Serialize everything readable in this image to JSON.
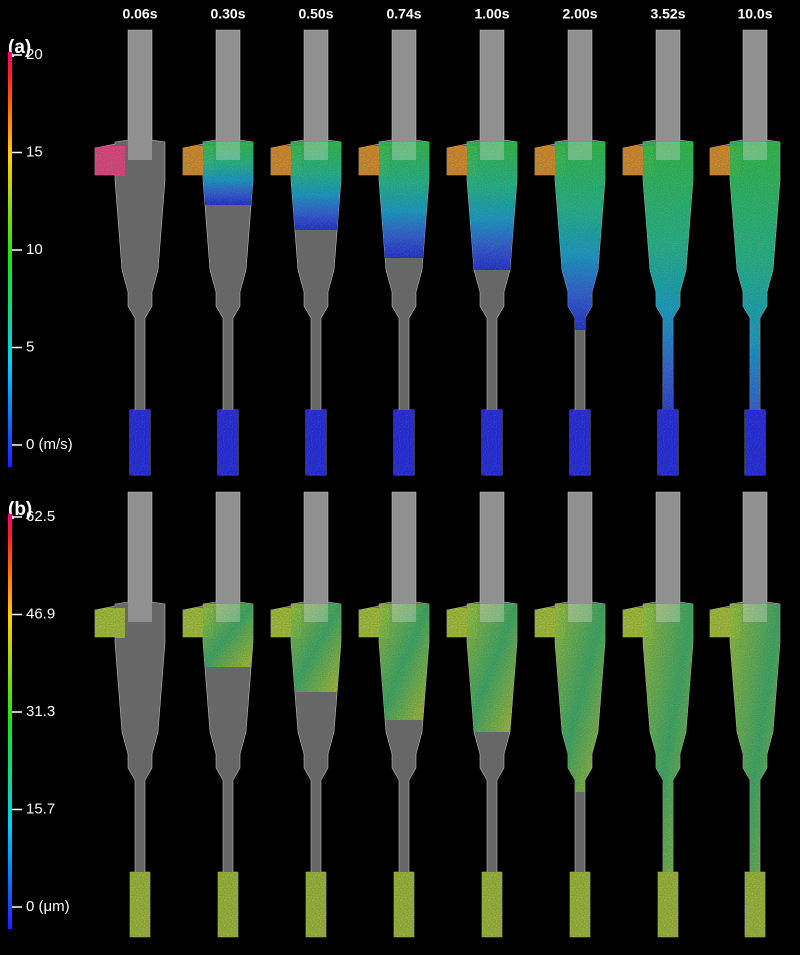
{
  "columns": [
    "0.06s",
    "0.30s",
    "0.50s",
    "0.74s",
    "1.00s",
    "2.00s",
    "3.52s",
    "10.0s"
  ],
  "panels": [
    {
      "label": "(a)",
      "colorbar": {
        "ticks": [
          "20",
          "15",
          "10",
          "5",
          "0 (m/s)"
        ]
      }
    },
    {
      "label": "(b)",
      "colorbar": {
        "ticks": [
          "62.5",
          "46.9",
          "31.3",
          "15.7",
          "0 (μm)"
        ]
      }
    }
  ]
}
